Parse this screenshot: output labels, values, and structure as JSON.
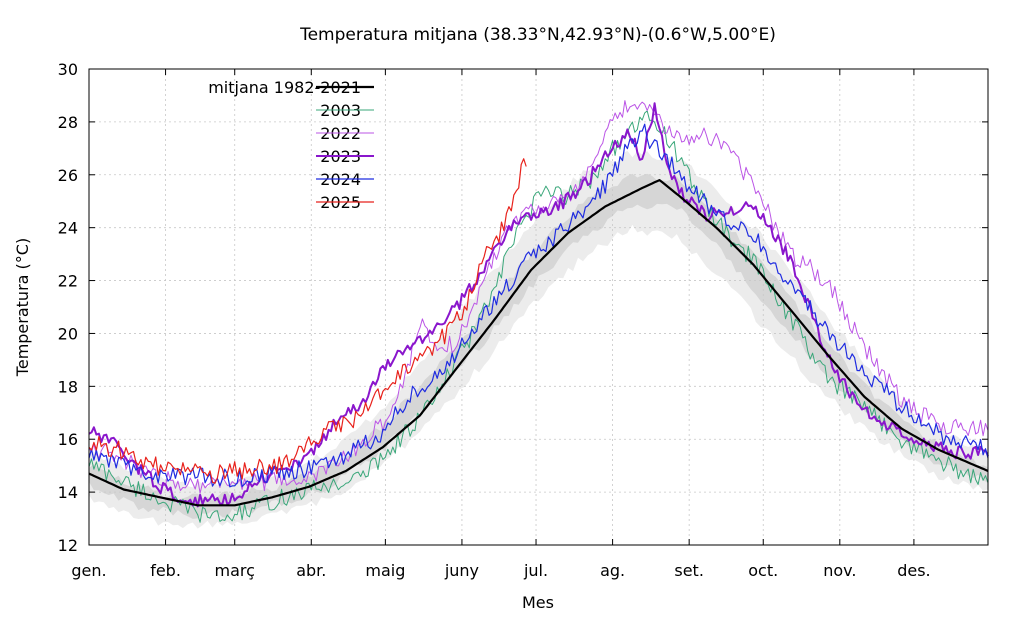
{
  "chart_data": {
    "type": "line",
    "title": "Temperatura mitjana (38.33°N,42.93°N)-(0.6°W,5.00°E)",
    "xlabel": "Mes",
    "ylabel": "Temperatura (°C)",
    "xlim": [
      1,
      365
    ],
    "ylim": [
      12,
      30
    ],
    "yticks": [
      12,
      14,
      16,
      18,
      20,
      22,
      24,
      26,
      28,
      30
    ],
    "month_labels": [
      "gen.",
      "feb.",
      "març",
      "abr.",
      "maig",
      "juny",
      "jul.",
      "ag.",
      "set.",
      "oct.",
      "nov.",
      "des."
    ],
    "month_days": [
      1,
      32,
      60,
      91,
      121,
      152,
      182,
      213,
      244,
      274,
      305,
      335
    ],
    "grid": true,
    "legend_position": "top-left",
    "bands": {
      "outer": {
        "color": "#ececec",
        "day": [
          1,
          20,
          40,
          60,
          80,
          100,
          120,
          140,
          160,
          180,
          200,
          220,
          240,
          260,
          280,
          300,
          320,
          340,
          365
        ],
        "low": [
          13.8,
          13.0,
          12.7,
          12.8,
          13.2,
          13.8,
          15.0,
          16.8,
          18.8,
          21.0,
          22.8,
          24.0,
          23.6,
          21.8,
          19.6,
          17.6,
          16.0,
          14.8,
          14.0
        ],
        "high": [
          15.5,
          14.8,
          14.3,
          14.4,
          14.8,
          15.6,
          17.2,
          19.4,
          21.8,
          24.2,
          26.0,
          26.8,
          26.6,
          25.0,
          23.0,
          20.6,
          18.4,
          16.6,
          15.4
        ]
      },
      "inner": {
        "color": "#d6d6d6",
        "day": [
          1,
          20,
          40,
          60,
          80,
          100,
          120,
          140,
          160,
          180,
          200,
          220,
          240,
          260,
          280,
          300,
          320,
          340,
          365
        ],
        "low": [
          14.3,
          13.5,
          13.1,
          13.2,
          13.6,
          14.3,
          15.6,
          17.5,
          19.6,
          21.8,
          23.6,
          24.8,
          24.7,
          22.8,
          20.6,
          18.4,
          16.7,
          15.3,
          14.4
        ],
        "high": [
          15.0,
          14.2,
          13.8,
          13.9,
          14.3,
          15.0,
          16.5,
          18.5,
          20.7,
          23.0,
          24.9,
          26.0,
          25.9,
          24.0,
          21.9,
          19.6,
          17.6,
          16.0,
          14.9
        ]
      }
    },
    "series": [
      {
        "name": "mitjana 1982-2021",
        "color": "#000000",
        "width": 2.2,
        "day": [
          1,
          15,
          30,
          45,
          60,
          75,
          90,
          105,
          120,
          135,
          150,
          165,
          180,
          195,
          210,
          225,
          232,
          240,
          255,
          270,
          285,
          300,
          315,
          330,
          345,
          365
        ],
        "value": [
          14.7,
          14.1,
          13.8,
          13.5,
          13.5,
          13.8,
          14.2,
          14.8,
          15.7,
          16.9,
          18.7,
          20.5,
          22.4,
          23.8,
          24.8,
          25.5,
          25.8,
          25.2,
          24.0,
          22.6,
          20.9,
          19.2,
          17.6,
          16.4,
          15.6,
          14.8
        ]
      },
      {
        "name": "2003",
        "color": "#3aa77a",
        "width": 1,
        "day": [
          1,
          15,
          30,
          45,
          55,
          65,
          80,
          95,
          110,
          125,
          140,
          155,
          165,
          175,
          185,
          195,
          205,
          212,
          220,
          228,
          235,
          242,
          250,
          260,
          270,
          285,
          300,
          315,
          330,
          345,
          365
        ],
        "value": [
          15.1,
          14.4,
          13.7,
          13.2,
          13.0,
          13.3,
          13.8,
          14.2,
          14.5,
          15.8,
          17.4,
          19.8,
          21.6,
          24.0,
          25.4,
          25.2,
          25.9,
          26.9,
          27.6,
          28.2,
          27.5,
          26.2,
          25.0,
          23.6,
          22.8,
          20.6,
          18.3,
          17.2,
          16.0,
          15.2,
          14.3
        ]
      },
      {
        "name": "2022",
        "color": "#bb55e6",
        "width": 1,
        "day": [
          1,
          15,
          30,
          45,
          60,
          75,
          90,
          105,
          120,
          128,
          135,
          142,
          150,
          160,
          170,
          180,
          190,
          200,
          210,
          218,
          225,
          232,
          240,
          250,
          260,
          270,
          285,
          300,
          315,
          330,
          345,
          365
        ],
        "value": [
          15.8,
          15.2,
          14.5,
          14.3,
          14.4,
          14.4,
          14.5,
          15.3,
          16.6,
          18.0,
          20.5,
          19.5,
          19.6,
          21.8,
          24.0,
          24.8,
          24.9,
          25.5,
          27.5,
          28.5,
          28.7,
          28.0,
          27.3,
          27.6,
          27.0,
          25.6,
          23.0,
          22.0,
          19.5,
          17.5,
          16.5,
          16.4
        ]
      },
      {
        "name": "2023",
        "color": "#8a16cc",
        "width": 2,
        "day": [
          1,
          10,
          20,
          30,
          40,
          50,
          60,
          70,
          80,
          90,
          100,
          110,
          120,
          130,
          140,
          150,
          160,
          170,
          180,
          190,
          200,
          210,
          220,
          225,
          230,
          235,
          240,
          250,
          260,
          265,
          270,
          280,
          285,
          290,
          300,
          310,
          320,
          330,
          340,
          350,
          365
        ],
        "value": [
          16.3,
          15.9,
          15.0,
          14.2,
          13.6,
          13.7,
          13.8,
          14.5,
          14.9,
          15.3,
          16.6,
          17.2,
          18.6,
          19.5,
          20.1,
          21.0,
          22.3,
          23.9,
          24.5,
          24.8,
          25.4,
          26.7,
          27.6,
          26.6,
          28.6,
          26.4,
          25.4,
          24.5,
          24.6,
          24.9,
          24.8,
          23.5,
          22.8,
          21.6,
          19.1,
          17.6,
          16.8,
          16.3,
          15.9,
          15.5,
          15.5
        ]
      },
      {
        "name": "2024",
        "color": "#1f2ce0",
        "width": 1.2,
        "day": [
          1,
          15,
          30,
          45,
          60,
          75,
          90,
          105,
          120,
          130,
          140,
          150,
          160,
          170,
          180,
          190,
          200,
          210,
          220,
          225,
          230,
          240,
          250,
          260,
          270,
          280,
          290,
          300,
          315,
          330,
          345,
          365
        ],
        "value": [
          15.4,
          15.0,
          14.6,
          14.6,
          14.5,
          14.7,
          14.9,
          15.3,
          16.3,
          17.5,
          18.4,
          19.2,
          20.6,
          21.7,
          22.9,
          23.7,
          24.5,
          25.6,
          27.1,
          27.7,
          27.1,
          26.0,
          25.0,
          24.3,
          23.8,
          22.4,
          21.3,
          20.1,
          18.6,
          17.2,
          16.2,
          15.6
        ]
      },
      {
        "name": "2025",
        "color": "#e8221c",
        "width": 1.2,
        "day": [
          1,
          10,
          20,
          30,
          40,
          50,
          60,
          70,
          80,
          90,
          100,
          110,
          120,
          130,
          140,
          150,
          155,
          160,
          165,
          170,
          175,
          178
        ],
        "value": [
          15.8,
          15.7,
          15.3,
          14.9,
          14.8,
          14.6,
          14.8,
          14.9,
          15.1,
          15.8,
          16.5,
          16.8,
          17.9,
          18.6,
          19.4,
          20.5,
          21.4,
          22.8,
          23.2,
          24.4,
          25.8,
          26.6
        ]
      }
    ]
  }
}
